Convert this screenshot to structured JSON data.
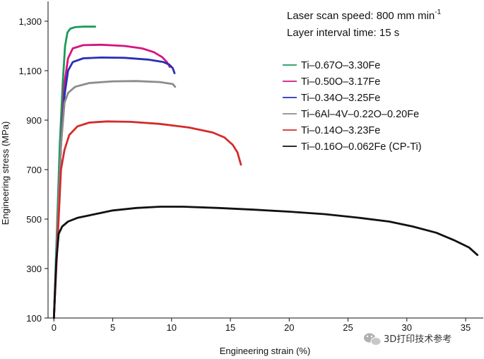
{
  "chart_data": {
    "type": "line",
    "xlabel": "Engineering strain (%)",
    "ylabel": "Engineering stress (MPa)",
    "xlim": [
      -0.5,
      36.5
    ],
    "ylim": [
      100,
      1380
    ],
    "xticks": [
      0,
      5,
      10,
      15,
      20,
      25,
      30,
      35
    ],
    "xtick_labels": [
      "0",
      "5",
      "10",
      "15",
      "20",
      "25",
      "30",
      "35"
    ],
    "yticks": [
      100,
      300,
      500,
      700,
      900,
      1100,
      1300
    ],
    "ytick_labels": [
      "100",
      "300",
      "500",
      "700",
      "900",
      "1,100",
      "1,300"
    ],
    "grid": false,
    "legend_position": "right",
    "annotations": {
      "speed": "Laser scan speed: 800 mm min",
      "speed_sup": "-1",
      "interval": "Layer interval time: 15 s"
    },
    "series": [
      {
        "name": "Ti–0.67O–3.30Fe",
        "color": "#1e9a5a",
        "x": [
          0,
          0.25,
          0.5,
          0.75,
          0.95,
          1.15,
          1.4,
          1.8,
          2.5,
          3.5
        ],
        "y": [
          100,
          450,
          800,
          1050,
          1200,
          1255,
          1270,
          1276,
          1278,
          1278
        ]
      },
      {
        "name": "Ti–0.50O–3.17Fe",
        "color": "#d6157e",
        "x": [
          0,
          0.3,
          0.6,
          0.9,
          1.2,
          1.6,
          2.5,
          4,
          6,
          7.5,
          8.5,
          9.2,
          9.6,
          9.85
        ],
        "y": [
          100,
          450,
          800,
          1050,
          1150,
          1190,
          1203,
          1205,
          1200,
          1190,
          1175,
          1155,
          1135,
          1115
        ]
      },
      {
        "name": "Ti–0.34O–3.25Fe",
        "color": "#2a2fb5",
        "x": [
          0,
          0.3,
          0.6,
          0.9,
          1.2,
          1.6,
          2.5,
          4,
          6,
          8,
          9.3,
          9.8,
          10.1,
          10.25
        ],
        "y": [
          100,
          450,
          800,
          1000,
          1100,
          1135,
          1150,
          1153,
          1152,
          1145,
          1135,
          1125,
          1110,
          1090
        ]
      },
      {
        "name": "Ti–6Al–4V–0.22O–0.20Fe",
        "color": "#8c8c8c",
        "x": [
          0,
          0.3,
          0.6,
          0.9,
          1.2,
          1.8,
          3,
          5,
          7,
          9,
          10.1,
          10.3
        ],
        "y": [
          100,
          450,
          800,
          970,
          1010,
          1035,
          1050,
          1057,
          1058,
          1054,
          1046,
          1035
        ]
      },
      {
        "name": "Ti–0.14O–3.23Fe",
        "color": "#d42b2b",
        "x": [
          0,
          0.3,
          0.6,
          0.9,
          1.3,
          2,
          3,
          4.5,
          6.5,
          9,
          11.5,
          13.5,
          14.5,
          15.2,
          15.6,
          15.9
        ],
        "y": [
          100,
          400,
          700,
          780,
          840,
          875,
          890,
          895,
          893,
          885,
          870,
          850,
          830,
          800,
          770,
          720
        ]
      },
      {
        "name": "Ti–0.16O–0.062Fe (CP-Ti)",
        "color": "#111111",
        "x": [
          0,
          0.2,
          0.4,
          0.7,
          1.2,
          2,
          3.5,
          5,
          7,
          9,
          11,
          14,
          17,
          20,
          23,
          26,
          28.5,
          30.5,
          32.5,
          34,
          35.3,
          36
        ],
        "y": [
          100,
          330,
          440,
          470,
          490,
          505,
          520,
          535,
          545,
          550,
          550,
          545,
          538,
          530,
          520,
          505,
          490,
          470,
          445,
          415,
          385,
          355
        ]
      }
    ]
  },
  "watermark": {
    "icon": "wechat-icon",
    "text": "3D打印技术参考"
  }
}
